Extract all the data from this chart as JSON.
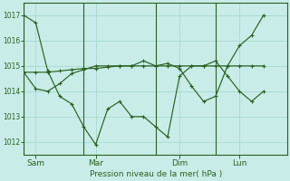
{
  "background_color": "#c8ede8",
  "grid_color": "#a8d8d0",
  "line_color": "#2a6020",
  "ylabel": "Pression niveau de la mer( hPa )",
  "ylim": [
    1011.5,
    1017.5
  ],
  "yticks": [
    1012,
    1013,
    1014,
    1015,
    1016,
    1017
  ],
  "xtick_labels": [
    "Sam",
    "Mar",
    "Dim",
    "Lun"
  ],
  "xtick_positions": [
    0.5,
    3.0,
    6.5,
    9.0
  ],
  "vline_positions": [
    0.0,
    2.5,
    5.5,
    8.0
  ],
  "xlim": [
    0.0,
    11.0
  ],
  "n_points": 21,
  "x": [
    0.0,
    0.5,
    1.0,
    1.5,
    2.0,
    2.5,
    3.0,
    3.5,
    4.0,
    4.5,
    5.0,
    5.5,
    6.0,
    6.5,
    7.0,
    7.5,
    8.0,
    8.5,
    9.0,
    9.5,
    10.0
  ],
  "s1_dip": [
    1017.0,
    1016.7,
    1014.8,
    1013.8,
    1013.5,
    1012.6,
    1011.9,
    1013.3,
    1013.6,
    1013.0,
    1013.0,
    1012.6,
    1012.2,
    1014.6,
    1015.0,
    1015.0,
    1015.2,
    1014.6,
    1014.0,
    1013.6,
    1014.0
  ],
  "s2_flat": [
    1014.75,
    1014.75,
    1014.75,
    1014.8,
    1014.85,
    1014.9,
    1014.9,
    1014.95,
    1015.0,
    1015.0,
    1015.0,
    1015.0,
    1015.0,
    1015.0,
    1015.0,
    1015.0,
    1015.0,
    1015.0,
    1015.0,
    1015.0,
    1015.0
  ],
  "s3_rise": [
    1014.75,
    1014.1,
    1014.0,
    1014.3,
    1014.7,
    1014.85,
    1015.0,
    1015.0,
    1015.0,
    1015.0,
    1015.2,
    1015.0,
    1015.1,
    1014.9,
    1014.2,
    1013.6,
    1013.8,
    1015.0,
    1015.8,
    1016.2,
    1017.0
  ]
}
